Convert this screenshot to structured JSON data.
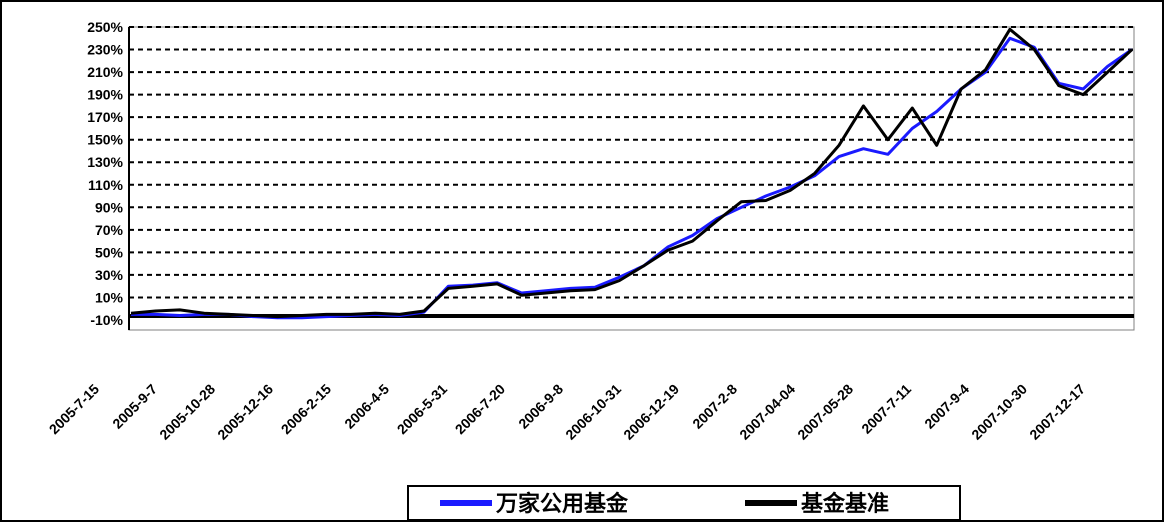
{
  "chart_data": {
    "type": "line",
    "title": "",
    "xlabel": "",
    "ylabel": "",
    "ylim": [
      -10,
      250
    ],
    "y_ticks": [
      -10,
      10,
      30,
      50,
      70,
      90,
      110,
      130,
      150,
      170,
      190,
      210,
      230,
      250
    ],
    "y_tick_labels": [
      "-10%",
      "10%",
      "30%",
      "50%",
      "70%",
      "90%",
      "110%",
      "130%",
      "150%",
      "170%",
      "190%",
      "210%",
      "230%",
      "250%"
    ],
    "grid": "horizontal dashed",
    "legend_position": "bottom",
    "x_tick_labels": [
      "2005-7-15",
      "2005-9-7",
      "2005-10-28",
      "2005-12-16",
      "2006-2-15",
      "2006-4-5",
      "2006-5-31",
      "2006-7-20",
      "2006-9-8",
      "2006-10-31",
      "2006-12-19",
      "2007-2-8",
      "2007-04-04",
      "2007-05-28",
      "2007-7-11",
      "2007-9-4",
      "2007-10-30",
      "2007-12-17"
    ],
    "series": [
      {
        "name": "万家公用基金",
        "color": "#1a1aff",
        "values": [
          -5,
          -5,
          -6,
          -5,
          -5,
          -7,
          -8,
          -8,
          -7,
          -6,
          -5,
          -6,
          -3,
          20,
          21,
          23,
          14,
          16,
          18,
          19,
          28,
          38,
          55,
          65,
          80,
          90,
          100,
          108,
          118,
          135,
          142,
          137,
          160,
          175,
          195,
          210,
          240,
          232,
          200,
          195,
          215,
          230
        ]
      },
      {
        "name": "基金基准",
        "color": "#000000",
        "values": [
          -4,
          -2,
          -1,
          -4,
          -5,
          -6,
          -7,
          -6,
          -5,
          -5,
          -4,
          -5,
          -2,
          18,
          20,
          22,
          12,
          14,
          16,
          17,
          25,
          38,
          52,
          60,
          78,
          95,
          96,
          105,
          120,
          145,
          180,
          150,
          178,
          145,
          195,
          212,
          248,
          230,
          198,
          190,
          210,
          230
        ]
      }
    ]
  }
}
